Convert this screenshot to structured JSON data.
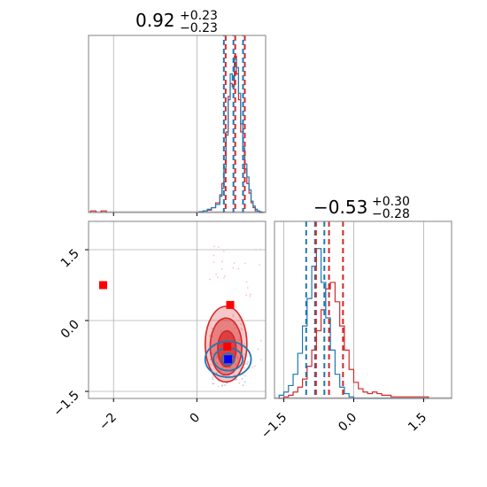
{
  "chart_data": {
    "type": "corner",
    "parameters": 2,
    "grid": true,
    "colors": {
      "posterior_a": "#1f77b4",
      "posterior_b": "#d62728",
      "marker_a": "#0000ff",
      "marker_b": "#ff0000"
    },
    "titles": [
      {
        "median": "0.92",
        "plus": "+0.23",
        "minus": "−0.23"
      },
      {
        "median": "−0.53",
        "plus": "+0.30",
        "minus": "−0.28"
      }
    ],
    "x_param1": {
      "range": [
        -2.6,
        1.65
      ],
      "ticks": [
        -2,
        0
      ],
      "tick_labels": [
        "−2",
        "0"
      ]
    },
    "x_param2": {
      "range": [
        -1.7,
        2.1
      ],
      "ticks": [
        -1.5,
        0.0,
        1.5
      ],
      "tick_labels": [
        "−1.5",
        "0.0",
        "1.5"
      ]
    },
    "y_param2": {
      "range": [
        -1.65,
        2.1
      ],
      "ticks": [
        -1.5,
        0.0,
        1.5
      ],
      "tick_labels": [
        "−1.5",
        "0.0",
        "1.5"
      ]
    },
    "hist_param1": {
      "bins_x": [
        0.05,
        0.15,
        0.25,
        0.35,
        0.45,
        0.55,
        0.6,
        0.65,
        0.7,
        0.75,
        0.8,
        0.85,
        0.9,
        0.95,
        1.0,
        1.05,
        1.1,
        1.15,
        1.2,
        1.25,
        1.3,
        1.35,
        1.4,
        1.45,
        1.5,
        1.55
      ],
      "series_a": [
        0.005,
        0.01,
        0.02,
        0.03,
        0.05,
        0.1,
        0.15,
        0.28,
        0.48,
        0.7,
        0.86,
        0.82,
        0.95,
        0.9,
        0.74,
        0.55,
        0.4,
        0.3,
        0.22,
        0.14,
        0.07,
        0.04,
        0.02,
        0.01,
        0.005,
        0.0
      ],
      "series_b": [
        0.005,
        0.01,
        0.015,
        0.03,
        0.06,
        0.11,
        0.18,
        0.3,
        0.5,
        0.72,
        0.8,
        0.78,
        0.97,
        0.86,
        0.7,
        0.5,
        0.38,
        0.27,
        0.18,
        0.12,
        0.06,
        0.03,
        0.01,
        0.01,
        0.0,
        0.0
      ],
      "outlier_bins_b": [
        [
          -2.55,
          0.01
        ],
        [
          -2.3,
          0.01
        ]
      ],
      "quantiles_a": [
        0.69,
        0.92,
        1.15
      ],
      "quantiles_b": [
        0.69,
        0.92,
        1.15
      ]
    },
    "hist_param2": {
      "bins_x": [
        -1.6,
        -1.5,
        -1.4,
        -1.3,
        -1.2,
        -1.1,
        -1.0,
        -0.9,
        -0.8,
        -0.7,
        -0.6,
        -0.5,
        -0.4,
        -0.3,
        -0.2,
        -0.1,
        0.0,
        0.1,
        0.2,
        0.3,
        0.4,
        0.5,
        0.6,
        0.7,
        0.8,
        0.9,
        1.0,
        1.1,
        1.5
      ],
      "series_a": [
        0.02,
        0.04,
        0.08,
        0.15,
        0.28,
        0.45,
        0.62,
        0.82,
        0.93,
        0.72,
        0.5,
        0.3,
        0.15,
        0.07,
        0.03,
        0.01,
        0.0,
        0.0,
        0.0,
        0.0,
        0.0,
        0.0,
        0.0,
        0.0,
        0.0,
        0.0,
        0.0,
        0.0,
        0.0
      ],
      "series_b": [
        0.0,
        0.01,
        0.02,
        0.04,
        0.07,
        0.12,
        0.2,
        0.3,
        0.42,
        0.55,
        0.68,
        0.72,
        0.6,
        0.45,
        0.3,
        0.18,
        0.1,
        0.06,
        0.04,
        0.03,
        0.04,
        0.03,
        0.02,
        0.02,
        0.01,
        0.01,
        0.01,
        0.01,
        0.01
      ],
      "quantiles_a": [
        -1.02,
        -0.83,
        -0.63
      ],
      "quantiles_b": [
        -0.81,
        -0.53,
        -0.23
      ]
    },
    "scatter": {
      "markers_b": [
        [
          -2.25,
          0.75
        ],
        [
          0.8,
          0.33
        ],
        [
          0.73,
          -0.55
        ]
      ],
      "markers_a": [
        [
          0.75,
          -0.82
        ]
      ],
      "contours_b": [
        {
          "cx": 0.7,
          "cy": -0.5,
          "rx": 0.5,
          "ry": 0.8,
          "fill": 0.25
        },
        {
          "cx": 0.7,
          "cy": -0.55,
          "rx": 0.38,
          "ry": 0.6,
          "fill": 0.45
        },
        {
          "cx": 0.72,
          "cy": -0.6,
          "rx": 0.22,
          "ry": 0.38,
          "fill": 0.7
        }
      ],
      "contours_a": [
        {
          "cx": 0.75,
          "cy": -0.82,
          "rx": 0.55,
          "ry": 0.38
        },
        {
          "cx": 0.75,
          "cy": -0.82,
          "rx": 0.35,
          "ry": 0.24
        },
        {
          "cx": 0.75,
          "cy": -0.82,
          "rx": 0.15,
          "ry": 0.12
        }
      ]
    }
  }
}
